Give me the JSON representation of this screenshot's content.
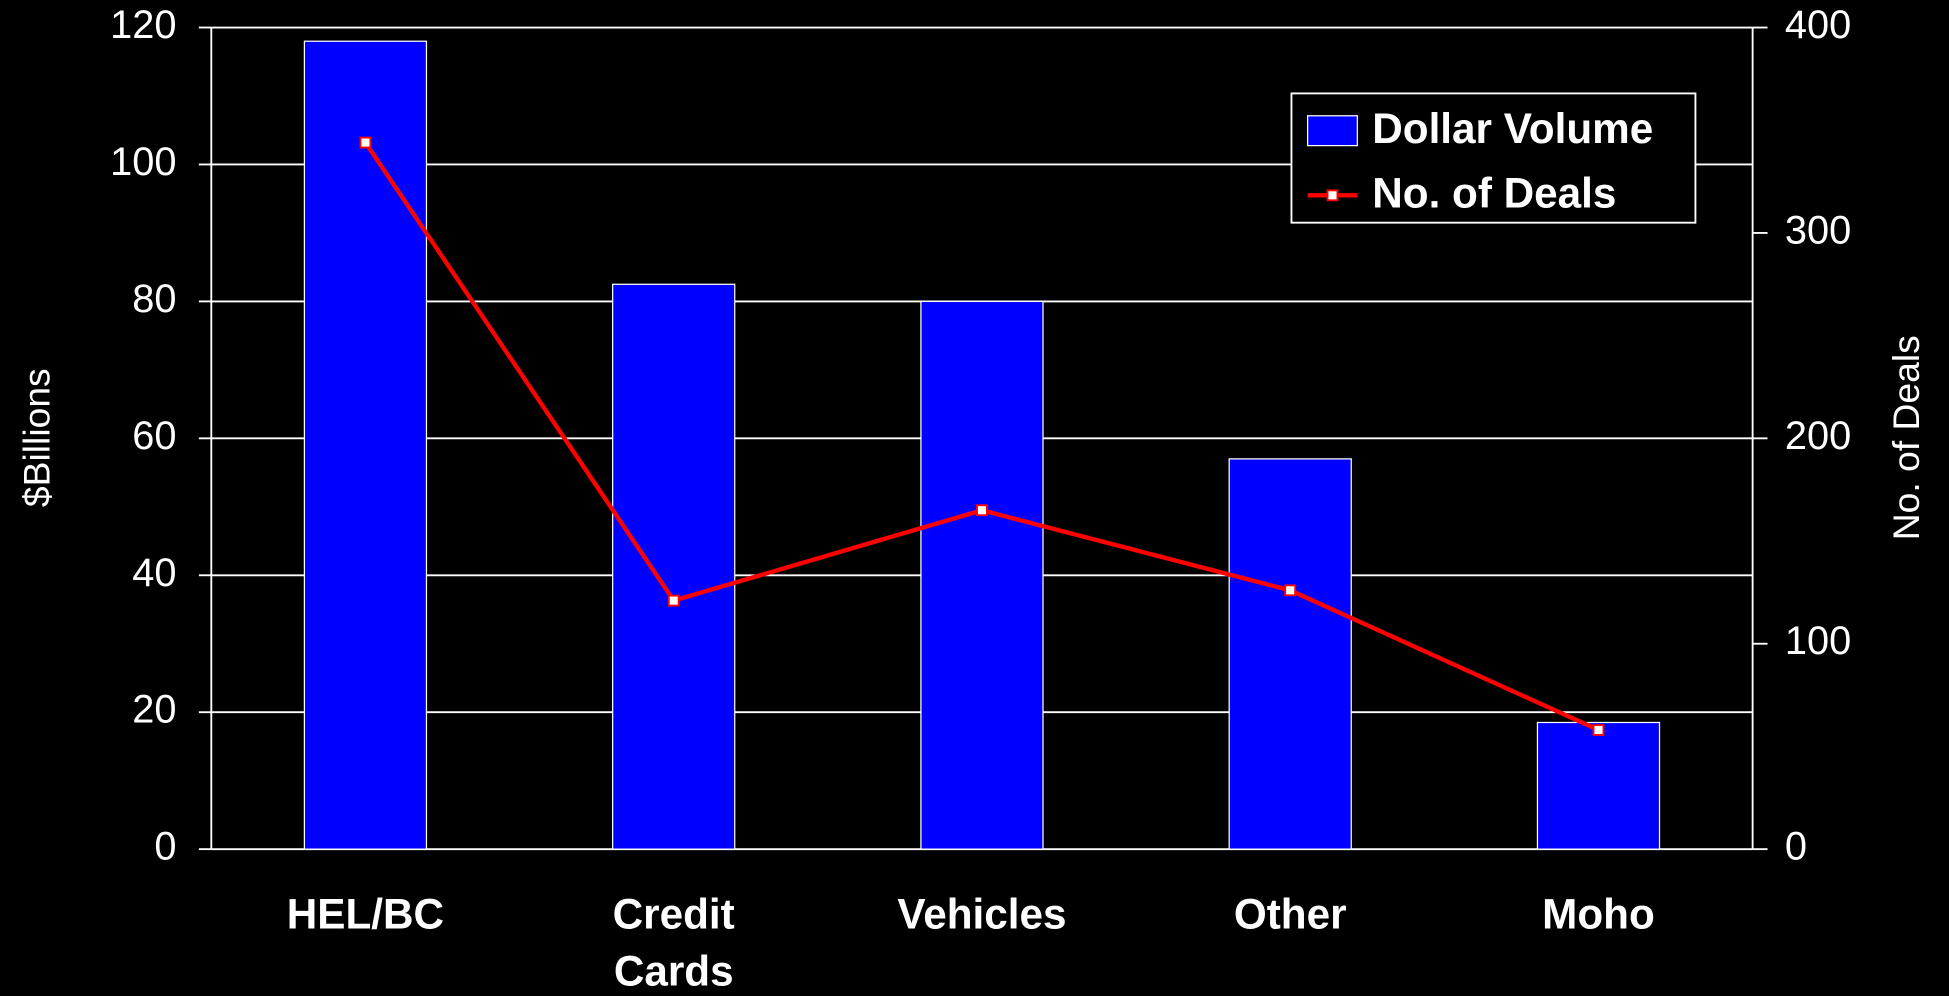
{
  "chart_data": {
    "type": "bar",
    "categories": [
      "HEL/BC",
      "Credit Cards",
      "Vehicles",
      "Other",
      "Moho"
    ],
    "series": [
      {
        "name": "Dollar Volume",
        "color": "#0000ff",
        "type": "bar",
        "values": [
          118,
          82.5,
          80,
          57,
          18.5
        ]
      },
      {
        "name": "No. of Deals",
        "color": "#ff0000",
        "type": "line",
        "axis": "y2",
        "values": [
          344,
          121,
          165,
          126,
          58
        ]
      }
    ],
    "y_label": "$Billions",
    "y2_label": "No. of Deals",
    "ylim": [
      0,
      120
    ],
    "yticks": [
      0,
      20,
      40,
      60,
      80,
      100,
      120
    ],
    "y2lim": [
      0,
      400
    ],
    "y2ticks": [
      0,
      100,
      200,
      300,
      400
    ],
    "grid": true,
    "legend": "upper right"
  }
}
